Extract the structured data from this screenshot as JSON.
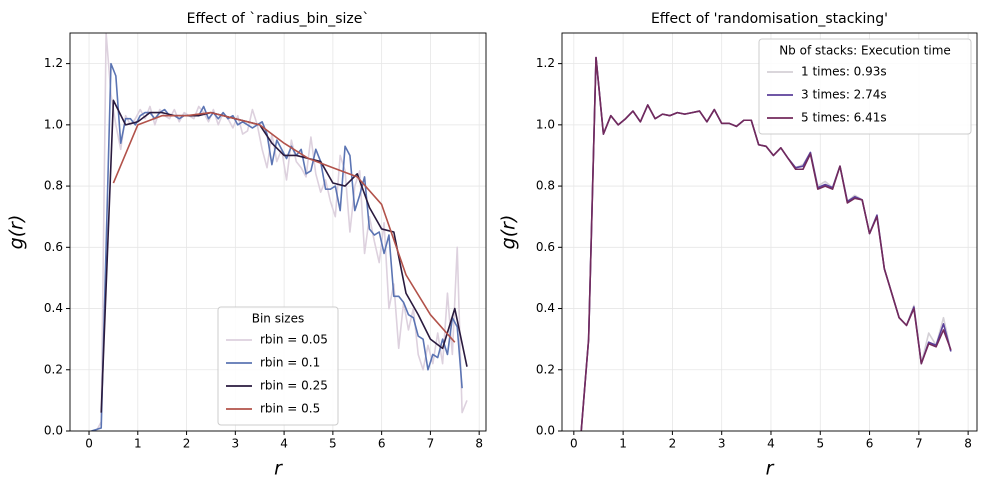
{
  "chart_data": [
    {
      "type": "line",
      "title": "Effect of `radius_bin_size`",
      "x_label": "r",
      "y_label": "g(r)",
      "xlim": [
        -0.39,
        8.14
      ],
      "ylim": [
        0,
        1.3
      ],
      "xticks": [
        0,
        1,
        2,
        3,
        4,
        5,
        6,
        7,
        8
      ],
      "yticks": [
        {
          "value": 0,
          "label": "0.0"
        },
        0.2,
        0.4,
        0.6,
        0.8,
        {
          "value": 1,
          "label": "1.0"
        },
        1.2
      ],
      "grid": true,
      "legend": "lower center",
      "legend_title": "Bin sizes",
      "series": [
        {
          "name": "rbin = 0.05",
          "color": "#ddd1de",
          "x": [
            0.05,
            0.15,
            0.25,
            0.35,
            0.45,
            0.55,
            0.65,
            0.75,
            0.85,
            0.95,
            1.05,
            1.15,
            1.25,
            1.35,
            1.45,
            1.55,
            1.65,
            1.75,
            1.85,
            1.95,
            2.05,
            2.15,
            2.25,
            2.35,
            2.45,
            2.55,
            2.65,
            2.75,
            2.85,
            2.95,
            3.05,
            3.15,
            3.25,
            3.35,
            3.45,
            3.55,
            3.65,
            3.75,
            3.85,
            3.95,
            4.05,
            4.15,
            4.25,
            4.35,
            4.45,
            4.55,
            4.65,
            4.75,
            4.85,
            4.95,
            5.05,
            5.15,
            5.25,
            5.35,
            5.45,
            5.55,
            5.65,
            5.75,
            5.85,
            5.95,
            6.05,
            6.15,
            6.25,
            6.35,
            6.45,
            6.55,
            6.65,
            6.75,
            6.85,
            6.95,
            7.05,
            7.15,
            7.25,
            7.35,
            7.45,
            7.55,
            7.65,
            7.75
          ],
          "values": [
            0,
            0,
            0.03,
            1.3,
            1.1,
            1.0,
            0.92,
            1.03,
            1.0,
            1.02,
            1.05,
            1.02,
            1.06,
            1.0,
            1.05,
            1.03,
            1.02,
            1.05,
            1.01,
            1.04,
            1.03,
            1.02,
            1.06,
            1.04,
            1.01,
            1.05,
            1.0,
            1.04,
            1.02,
            0.99,
            1.03,
            0.97,
            0.98,
            1.05,
            1.0,
            0.92,
            0.86,
            0.97,
            0.88,
            0.92,
            0.82,
            0.95,
            0.88,
            0.86,
            0.83,
            0.96,
            0.84,
            0.78,
            0.82,
            0.75,
            0.7,
            0.9,
            0.85,
            0.65,
            0.8,
            0.85,
            0.58,
            0.7,
            0.62,
            0.55,
            0.68,
            0.4,
            0.48,
            0.27,
            0.42,
            0.33,
            0.4,
            0.25,
            0.2,
            0.28,
            0.22,
            0.32,
            0.22,
            0.45,
            0.25,
            0.6,
            0.06,
            0.1
          ]
        },
        {
          "name": "rbin = 0.1",
          "color": "#5b74b3",
          "x": [
            0.05,
            0.15,
            0.25,
            0.35,
            0.45,
            0.55,
            0.65,
            0.75,
            0.85,
            0.95,
            1.05,
            1.15,
            1.25,
            1.35,
            1.45,
            1.55,
            1.65,
            1.75,
            1.85,
            1.95,
            2.05,
            2.15,
            2.25,
            2.35,
            2.45,
            2.55,
            2.65,
            2.75,
            2.85,
            2.95,
            3.05,
            3.15,
            3.25,
            3.35,
            3.45,
            3.55,
            3.65,
            3.75,
            3.85,
            3.95,
            4.05,
            4.15,
            4.25,
            4.35,
            4.45,
            4.55,
            4.65,
            4.75,
            4.85,
            4.95,
            5.05,
            5.15,
            5.25,
            5.35,
            5.45,
            5.55,
            5.65,
            5.75,
            5.85,
            5.95,
            6.05,
            6.15,
            6.25,
            6.35,
            6.45,
            6.55,
            6.65,
            6.75,
            6.85,
            6.95,
            7.05,
            7.15,
            7.25,
            7.35,
            7.45,
            7.55,
            7.65
          ],
          "values": [
            0,
            0.005,
            0.01,
            0.6,
            1.2,
            1.16,
            0.94,
            1.02,
            1.02,
            1.0,
            1.03,
            1.04,
            1.04,
            1.02,
            1.04,
            1.05,
            1.03,
            1.03,
            1.02,
            1.03,
            1.03,
            1.03,
            1.03,
            1.06,
            1.02,
            1.04,
            1.02,
            1.04,
            1.02,
            1.03,
            1.0,
            1.01,
            1.0,
            0.99,
            1.0,
            1.01,
            0.97,
            0.87,
            0.95,
            0.92,
            0.89,
            0.93,
            0.9,
            0.92,
            0.84,
            0.85,
            0.92,
            0.88,
            0.79,
            0.79,
            0.8,
            0.72,
            0.93,
            0.9,
            0.72,
            0.77,
            0.83,
            0.66,
            0.64,
            0.65,
            0.58,
            0.64,
            0.44,
            0.44,
            0.42,
            0.38,
            0.37,
            0.31,
            0.3,
            0.2,
            0.25,
            0.24,
            0.3,
            0.25,
            0.37,
            0.34,
            0.14
          ]
        },
        {
          "name": "rbin = 0.25",
          "color": "#2a1a3e",
          "x": [
            0.25,
            0.5,
            0.75,
            1.0,
            1.25,
            1.5,
            1.75,
            2.0,
            2.25,
            2.5,
            2.75,
            3.0,
            3.25,
            3.5,
            3.75,
            4.0,
            4.25,
            4.5,
            4.75,
            5.0,
            5.25,
            5.5,
            5.75,
            6.0,
            6.25,
            6.5,
            6.75,
            7.0,
            7.25,
            7.5,
            7.75
          ],
          "values": [
            0.06,
            1.08,
            1.0,
            1.01,
            1.04,
            1.04,
            1.03,
            1.03,
            1.03,
            1.04,
            1.03,
            1.02,
            1.01,
            1.0,
            0.94,
            0.9,
            0.9,
            0.89,
            0.88,
            0.81,
            0.8,
            0.84,
            0.73,
            0.66,
            0.65,
            0.45,
            0.38,
            0.3,
            0.27,
            0.4,
            0.21
          ]
        },
        {
          "name": "rbin = 0.5",
          "color": "#b2524a",
          "x": [
            0.5,
            1.0,
            1.5,
            2.0,
            2.5,
            3.0,
            3.5,
            4.0,
            4.5,
            5.0,
            5.5,
            6.0,
            6.5,
            7.0,
            7.5
          ],
          "values": [
            0.81,
            1.0,
            1.03,
            1.03,
            1.04,
            1.02,
            1.0,
            0.94,
            0.89,
            0.86,
            0.83,
            0.74,
            0.51,
            0.38,
            0.29
          ]
        }
      ]
    },
    {
      "type": "line",
      "title": "Effect of 'randomisation_stacking'",
      "x_label": "r",
      "y_label": "g(r)",
      "xlim": [
        -0.24,
        8.18
      ],
      "ylim": [
        0,
        1.3
      ],
      "xticks": [
        0,
        1,
        2,
        3,
        4,
        5,
        6,
        7,
        8
      ],
      "yticks": [
        {
          "value": 0,
          "label": "0.0"
        },
        0.2,
        0.4,
        0.6,
        0.8,
        {
          "value": 1,
          "label": "1.0"
        },
        1.2
      ],
      "grid": true,
      "legend": "upper right",
      "legend_title": "Nb of stacks: Execution time",
      "x": [
        0.15,
        0.3,
        0.45,
        0.6,
        0.75,
        0.9,
        1.05,
        1.2,
        1.35,
        1.5,
        1.65,
        1.8,
        1.95,
        2.1,
        2.25,
        2.4,
        2.55,
        2.7,
        2.85,
        3.0,
        3.15,
        3.3,
        3.45,
        3.6,
        3.75,
        3.9,
        4.05,
        4.2,
        4.35,
        4.5,
        4.65,
        4.8,
        4.95,
        5.1,
        5.25,
        5.4,
        5.55,
        5.7,
        5.85,
        6.0,
        6.15,
        6.3,
        6.45,
        6.6,
        6.75,
        6.9,
        7.05,
        7.2,
        7.35,
        7.5,
        7.65
      ],
      "series": [
        {
          "name": "1 times: 0.93s",
          "color": "#d4d0d6",
          "values": [
            0,
            0.3,
            1.22,
            0.97,
            1.03,
            1.0,
            1.02,
            1.045,
            1.01,
            1.065,
            1.02,
            1.035,
            1.03,
            1.04,
            1.035,
            1.04,
            1.045,
            1.01,
            1.05,
            1.005,
            1.005,
            0.995,
            1.015,
            1.015,
            0.935,
            0.93,
            0.9,
            0.925,
            0.89,
            0.86,
            0.87,
            0.91,
            0.8,
            0.815,
            0.795,
            0.865,
            0.75,
            0.77,
            0.755,
            0.645,
            0.705,
            0.53,
            0.45,
            0.37,
            0.345,
            0.41,
            0.22,
            0.32,
            0.28,
            0.37,
            0.26
          ]
        },
        {
          "name": "3 times: 2.74s",
          "color": "#5b3f9a",
          "values": [
            0,
            0.3,
            1.22,
            0.97,
            1.03,
            1.0,
            1.02,
            1.045,
            1.01,
            1.065,
            1.02,
            1.035,
            1.03,
            1.04,
            1.035,
            1.04,
            1.045,
            1.01,
            1.05,
            1.005,
            1.005,
            0.995,
            1.015,
            1.015,
            0.935,
            0.93,
            0.9,
            0.925,
            0.89,
            0.86,
            0.865,
            0.91,
            0.795,
            0.805,
            0.795,
            0.865,
            0.75,
            0.765,
            0.755,
            0.645,
            0.705,
            0.53,
            0.45,
            0.37,
            0.345,
            0.405,
            0.22,
            0.29,
            0.28,
            0.35,
            0.26
          ]
        },
        {
          "name": "5 times: 6.41s",
          "color": "#722a5c",
          "values": [
            0,
            0.3,
            1.22,
            0.97,
            1.03,
            1.0,
            1.02,
            1.045,
            1.01,
            1.065,
            1.02,
            1.035,
            1.03,
            1.04,
            1.035,
            1.04,
            1.045,
            1.01,
            1.05,
            1.005,
            1.005,
            0.995,
            1.015,
            1.015,
            0.935,
            0.93,
            0.9,
            0.925,
            0.89,
            0.855,
            0.855,
            0.905,
            0.79,
            0.8,
            0.79,
            0.865,
            0.745,
            0.76,
            0.755,
            0.645,
            0.7,
            0.53,
            0.45,
            0.37,
            0.345,
            0.4,
            0.22,
            0.285,
            0.275,
            0.33,
            0.265
          ]
        }
      ]
    }
  ]
}
